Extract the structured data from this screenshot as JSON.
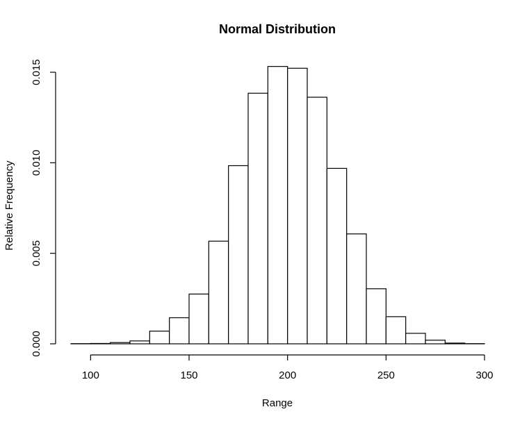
{
  "chart_data": {
    "type": "bar",
    "title": "Normal Distribution",
    "xlabel": "Range",
    "ylabel": "Relative Frequency",
    "xlim": [
      90,
      300
    ],
    "ylim": [
      0,
      0.015
    ],
    "x_ticks": [
      100,
      150,
      200,
      250,
      300
    ],
    "x_tick_labels": [
      "100",
      "150",
      "200",
      "250",
      "300"
    ],
    "y_ticks": [
      0.0,
      0.005,
      0.01,
      0.015
    ],
    "y_tick_labels": [
      "0.000",
      "0.005",
      "0.010",
      "0.015"
    ],
    "bin_width": 10,
    "bins_start": [
      90,
      100,
      110,
      120,
      130,
      140,
      150,
      160,
      170,
      180,
      190,
      200,
      210,
      220,
      230,
      240,
      250,
      260,
      270,
      280,
      290
    ],
    "values": [
      1e-05,
      2e-05,
      7e-05,
      0.00016,
      0.0007,
      0.00144,
      0.00275,
      0.00567,
      0.00984,
      0.01384,
      0.01532,
      0.01522,
      0.01362,
      0.00969,
      0.00607,
      0.00304,
      0.0015,
      0.00058,
      0.0002,
      4e-05,
      1e-05
    ],
    "colors": {
      "bar_fill": "#ffffff",
      "bar_stroke": "#000000"
    }
  }
}
